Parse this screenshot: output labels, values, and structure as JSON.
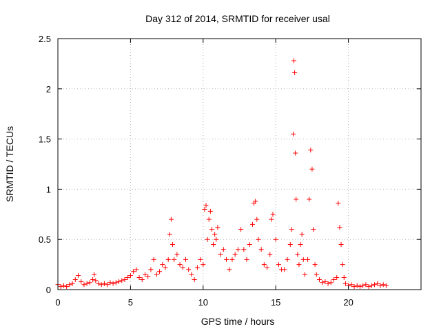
{
  "chart_data": {
    "type": "scatter",
    "title": "Day 312 of 2014, SRMTID for receiver usal",
    "xlabel": "GPS time / hours",
    "ylabel": "SRMTID / TECUs",
    "xlim": [
      0,
      25
    ],
    "ylim": [
      0,
      2.5
    ],
    "xticks": [
      0,
      5,
      10,
      15,
      20
    ],
    "yticks": [
      0,
      0.5,
      1,
      1.5,
      2,
      2.5
    ],
    "grid": true,
    "marker": "+",
    "color": "#ff0000",
    "series": [
      {
        "name": "SRMTID",
        "x": [
          0.0,
          0.2,
          0.4,
          0.6,
          0.8,
          1.0,
          1.2,
          1.4,
          1.6,
          1.8,
          2.0,
          2.2,
          2.4,
          2.5,
          2.6,
          2.8,
          3.0,
          3.2,
          3.4,
          3.6,
          3.8,
          4.0,
          4.2,
          4.4,
          4.6,
          4.8,
          5.0,
          5.2,
          5.4,
          5.6,
          5.8,
          6.0,
          6.2,
          6.4,
          6.6,
          6.8,
          7.0,
          7.2,
          7.4,
          7.6,
          7.7,
          7.8,
          7.9,
          8.0,
          8.2,
          8.4,
          8.6,
          8.8,
          9.0,
          9.2,
          9.4,
          9.6,
          9.8,
          10.0,
          10.1,
          10.2,
          10.3,
          10.4,
          10.5,
          10.6,
          10.7,
          10.8,
          10.9,
          11.0,
          11.2,
          11.4,
          11.6,
          11.8,
          12.0,
          12.2,
          12.4,
          12.6,
          12.8,
          13.0,
          13.2,
          13.4,
          13.5,
          13.6,
          13.7,
          13.8,
          14.0,
          14.2,
          14.4,
          14.6,
          14.7,
          14.8,
          15.0,
          15.2,
          15.4,
          15.6,
          15.8,
          16.0,
          16.1,
          16.2,
          16.25,
          16.3,
          16.35,
          16.4,
          16.5,
          16.6,
          16.7,
          16.8,
          16.9,
          17.0,
          17.2,
          17.3,
          17.4,
          17.5,
          17.6,
          17.7,
          17.8,
          18.0,
          18.2,
          18.4,
          18.6,
          18.8,
          19.0,
          19.2,
          19.3,
          19.4,
          19.5,
          19.6,
          19.7,
          19.8,
          20.0,
          20.2,
          20.4,
          20.6,
          20.8,
          21.0,
          21.2,
          21.4,
          21.6,
          21.8,
          22.0,
          22.2,
          22.4,
          22.6
        ],
        "y": [
          0.05,
          0.03,
          0.04,
          0.03,
          0.05,
          0.06,
          0.1,
          0.14,
          0.08,
          0.05,
          0.06,
          0.07,
          0.1,
          0.15,
          0.09,
          0.06,
          0.05,
          0.06,
          0.05,
          0.07,
          0.06,
          0.07,
          0.08,
          0.09,
          0.1,
          0.12,
          0.14,
          0.18,
          0.2,
          0.12,
          0.1,
          0.15,
          0.13,
          0.2,
          0.3,
          0.15,
          0.18,
          0.25,
          0.22,
          0.3,
          0.55,
          0.7,
          0.45,
          0.3,
          0.35,
          0.25,
          0.22,
          0.3,
          0.2,
          0.15,
          0.1,
          0.22,
          0.3,
          0.25,
          0.8,
          0.84,
          0.5,
          0.7,
          0.78,
          0.6,
          0.45,
          0.55,
          0.5,
          0.62,
          0.35,
          0.4,
          0.3,
          0.2,
          0.3,
          0.35,
          0.4,
          0.6,
          0.4,
          0.3,
          0.45,
          0.65,
          0.86,
          0.88,
          0.7,
          0.5,
          0.4,
          0.25,
          0.22,
          0.35,
          0.7,
          0.75,
          0.5,
          0.25,
          0.2,
          0.2,
          0.3,
          0.45,
          0.6,
          1.55,
          2.28,
          2.16,
          1.36,
          0.9,
          0.35,
          0.25,
          0.45,
          0.55,
          0.3,
          0.15,
          0.3,
          0.9,
          1.39,
          1.2,
          0.6,
          0.25,
          0.15,
          0.1,
          0.07,
          0.08,
          0.06,
          0.07,
          0.1,
          0.12,
          0.86,
          0.62,
          0.45,
          0.25,
          0.12,
          0.06,
          0.04,
          0.05,
          0.03,
          0.04,
          0.03,
          0.04,
          0.05,
          0.03,
          0.04,
          0.05,
          0.06,
          0.04,
          0.05,
          0.04
        ]
      }
    ]
  }
}
